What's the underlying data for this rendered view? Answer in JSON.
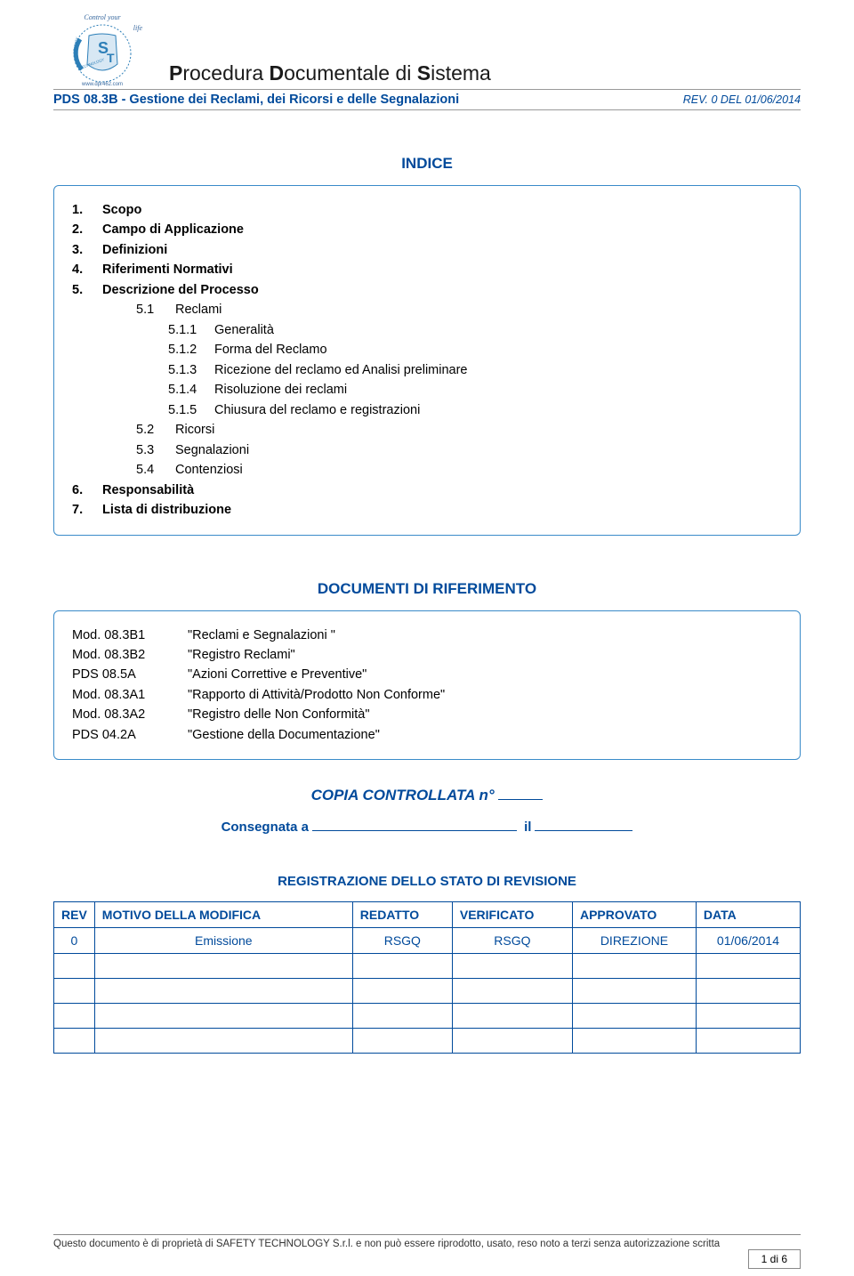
{
  "header": {
    "logo_text_top": "Control your",
    "logo_text_side": "life",
    "logo_url": "www.dpr462.com",
    "main_title_parts": [
      "P",
      "rocedura ",
      "D",
      "ocumentale di ",
      "S",
      "istema"
    ],
    "sub_title": "PDS 08.3B - Gestione dei Reclami, dei Ricorsi e delle Segnalazioni",
    "rev_label": "REV.",
    "rev_value": " 0 DEL 01/06/2014"
  },
  "colors": {
    "blue": "#004a9b",
    "border_blue": "#3a8bc9",
    "logo_blue": "#2d7fb8",
    "logo_text": "#3a6aa0"
  },
  "indice": {
    "title": "INDICE",
    "items": [
      {
        "level": 1,
        "num": "1.",
        "text": "Scopo"
      },
      {
        "level": 1,
        "num": "2.",
        "text": "Campo di Applicazione"
      },
      {
        "level": 1,
        "num": "3.",
        "text": "Definizioni"
      },
      {
        "level": 1,
        "num": "4.",
        "text": "Riferimenti Normativi"
      },
      {
        "level": 1,
        "num": "5.",
        "text": "Descrizione del Processo"
      },
      {
        "level": 2,
        "num": "5.1",
        "text": "Reclami"
      },
      {
        "level": 3,
        "num": "5.1.1",
        "text": "Generalità"
      },
      {
        "level": 3,
        "num": "5.1.2",
        "text": "Forma del Reclamo"
      },
      {
        "level": 3,
        "num": "5.1.3",
        "text": "Ricezione del reclamo ed Analisi preliminare"
      },
      {
        "level": 3,
        "num": "5.1.4",
        "text": "Risoluzione dei reclami"
      },
      {
        "level": 3,
        "num": "5.1.5",
        "text": "Chiusura del reclamo e registrazioni"
      },
      {
        "level": 2,
        "num": "5.2",
        "text": "Ricorsi"
      },
      {
        "level": 2,
        "num": "5.3",
        "text": "Segnalazioni"
      },
      {
        "level": 2,
        "num": "5.4",
        "text": "Contenziosi"
      },
      {
        "level": 1,
        "num": "6.",
        "text": "Responsabilità"
      },
      {
        "level": 1,
        "num": "7.",
        "text": "Lista di distribuzione"
      }
    ]
  },
  "refs": {
    "title": "DOCUMENTI DI RIFERIMENTO",
    "rows": [
      {
        "code": "Mod. 08.3B1",
        "desc": "\"Reclami e Segnalazioni \""
      },
      {
        "code": "Mod. 08.3B2",
        "desc": "\"Registro Reclami\""
      },
      {
        "code": "PDS 08.5A",
        "desc": "\"Azioni Correttive e Preventive\""
      },
      {
        "code": "Mod. 08.3A1",
        "desc": "\"Rapporto di Attività/Prodotto Non Conforme\""
      },
      {
        "code": "Mod. 08.3A2",
        "desc": "\"Registro delle Non Conformità\""
      },
      {
        "code": "PDS 04.2A",
        "desc": "\"Gestione della Documentazione\""
      }
    ]
  },
  "copia": {
    "label": "COPIA CONTROLLATA n°",
    "consegnata": "Consegnata a",
    "il": "il"
  },
  "revision": {
    "title": "REGISTRAZIONE DELLO STATO DI REVISIONE",
    "headers": [
      "REV",
      "MOTIVO DELLA MODIFICA",
      "REDATTO",
      "VERIFICATO",
      "APPROVATO",
      "DATA"
    ],
    "rows": [
      {
        "rev": "0",
        "motivo": "Emissione",
        "redatto": "RSGQ",
        "verificato": "RSGQ",
        "approvato": "DIREZIONE",
        "data": "01/06/2014"
      },
      {
        "rev": "",
        "motivo": "",
        "redatto": "",
        "verificato": "",
        "approvato": "",
        "data": ""
      },
      {
        "rev": "",
        "motivo": "",
        "redatto": "",
        "verificato": "",
        "approvato": "",
        "data": ""
      },
      {
        "rev": "",
        "motivo": "",
        "redatto": "",
        "verificato": "",
        "approvato": "",
        "data": ""
      },
      {
        "rev": "",
        "motivo": "",
        "redatto": "",
        "verificato": "",
        "approvato": "",
        "data": ""
      }
    ]
  },
  "footer": {
    "text": "Questo documento è di proprietà di SAFETY TECHNOLOGY S.r.l. e non può essere riprodotto, usato, reso noto a terzi senza autorizzazione scritta",
    "page": "1 di 6"
  }
}
